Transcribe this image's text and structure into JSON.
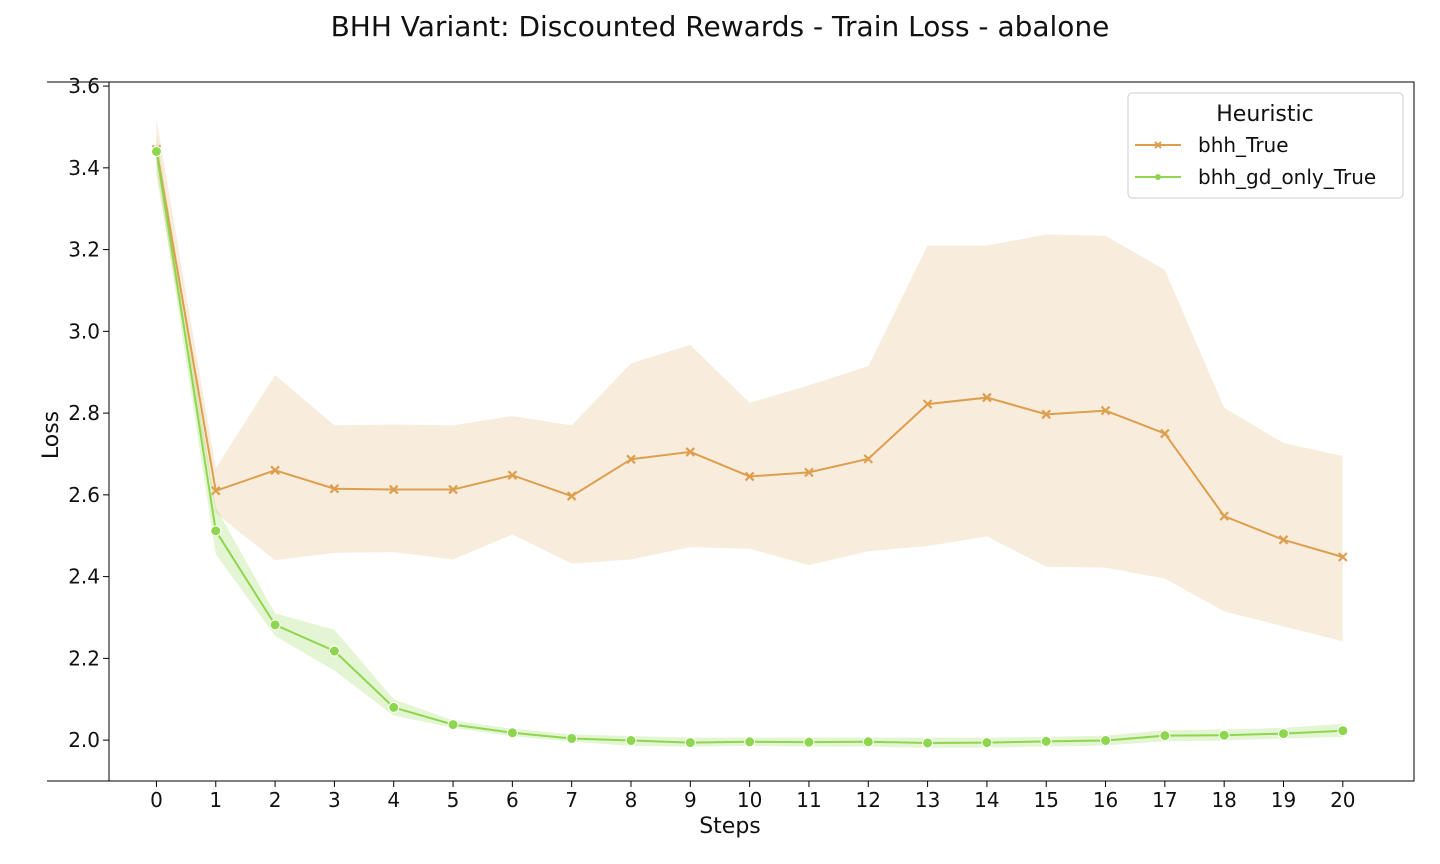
{
  "chart_data": {
    "type": "line",
    "title": "BHH Variant: Discounted Rewards - Train Loss - abalone",
    "xlabel": "Steps",
    "ylabel": "Loss",
    "x": [
      0,
      1,
      2,
      3,
      4,
      5,
      6,
      7,
      8,
      9,
      10,
      11,
      12,
      13,
      14,
      15,
      16,
      17,
      18,
      19,
      20
    ],
    "xlim": [
      -0.8,
      21.2
    ],
    "ylim": [
      1.9,
      3.61
    ],
    "yticks": [
      2.0,
      2.2,
      2.4,
      2.6,
      2.8,
      3.0,
      3.2,
      3.4,
      3.6
    ],
    "ytick_labels": [
      "2.0",
      "2.2",
      "2.4",
      "2.6",
      "2.8",
      "3.0",
      "3.2",
      "3.4",
      "3.6"
    ],
    "xtick_labels": [
      "0",
      "1",
      "2",
      "3",
      "4",
      "5",
      "6",
      "7",
      "8",
      "9",
      "10",
      "11",
      "12",
      "13",
      "14",
      "15",
      "16",
      "17",
      "18",
      "19",
      "20"
    ],
    "grid": false,
    "legend": {
      "title": "Heuristic",
      "placement": "top-right"
    },
    "series": [
      {
        "name": "bhh_True",
        "color": "#dd9f4e",
        "marker": "x",
        "values": [
          3.445,
          2.61,
          2.66,
          2.615,
          2.613,
          2.613,
          2.648,
          2.597,
          2.687,
          2.705,
          2.645,
          2.655,
          2.688,
          2.822,
          2.838,
          2.797,
          2.806,
          2.75,
          2.548,
          2.49,
          2.448
        ],
        "lower": [
          3.38,
          2.555,
          2.44,
          2.458,
          2.46,
          2.442,
          2.503,
          2.432,
          2.442,
          2.472,
          2.468,
          2.428,
          2.462,
          2.475,
          2.498,
          2.424,
          2.422,
          2.395,
          2.315,
          2.278,
          2.242
        ],
        "upper": [
          3.52,
          2.665,
          2.893,
          2.77,
          2.772,
          2.77,
          2.793,
          2.77,
          2.922,
          2.967,
          2.825,
          2.868,
          2.915,
          3.21,
          3.21,
          3.237,
          3.234,
          3.15,
          2.813,
          2.727,
          2.695
        ]
      },
      {
        "name": "bhh_gd_only_True",
        "color": "#8fd64f",
        "marker": "o",
        "values": [
          3.44,
          2.512,
          2.282,
          2.218,
          2.08,
          2.038,
          2.018,
          2.004,
          1.999,
          1.994,
          1.996,
          1.995,
          1.996,
          1.993,
          1.994,
          1.997,
          1.999,
          2.011,
          2.012,
          2.016,
          2.023
        ],
        "lower": [
          3.4,
          2.455,
          2.255,
          2.17,
          2.06,
          2.03,
          2.01,
          1.996,
          1.986,
          1.984,
          1.986,
          1.984,
          1.984,
          1.981,
          1.982,
          1.984,
          1.987,
          1.997,
          1.999,
          2.004,
          2.008
        ],
        "upper": [
          3.48,
          2.57,
          2.31,
          2.27,
          2.1,
          2.048,
          2.028,
          2.014,
          2.01,
          2.006,
          2.006,
          2.006,
          2.006,
          2.006,
          2.006,
          2.008,
          2.011,
          2.024,
          2.026,
          2.03,
          2.04
        ]
      }
    ]
  }
}
